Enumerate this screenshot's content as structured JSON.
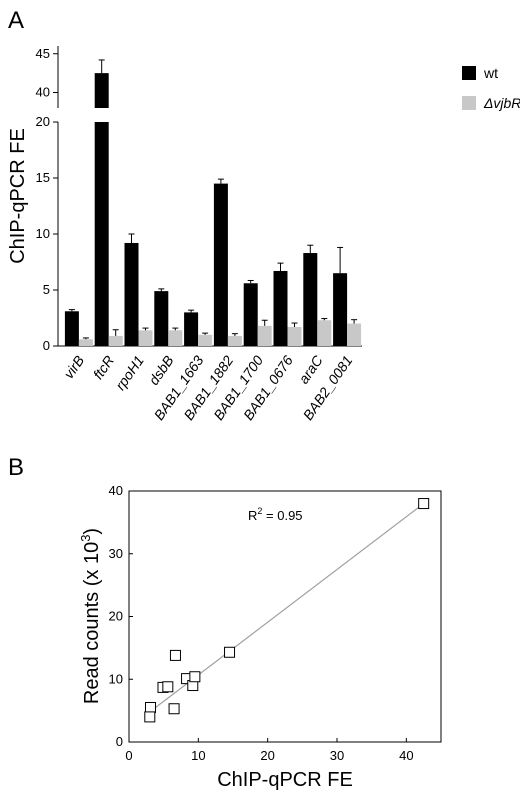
{
  "panels": {
    "a_label": "A",
    "b_label": "B"
  },
  "colors": {
    "wt": "#000000",
    "mutant": "#c8c8c8",
    "fit_line": "#a0a0a0"
  },
  "chart_data": [
    {
      "type": "bar",
      "panel": "A",
      "ylabel": "ChIP-qPCR FE",
      "categories": [
        "virB",
        "ftcR",
        "rpoH1",
        "dsbB",
        "BAB1_1663",
        "BAB1_1882",
        "BAB1_1700",
        "BAB1_0676",
        "araC",
        "BAB2_0081"
      ],
      "series": [
        {
          "name": "wt",
          "values": [
            3.1,
            42.5,
            9.2,
            4.9,
            3.0,
            14.5,
            5.6,
            6.7,
            8.3,
            6.5
          ],
          "errors": [
            0.15,
            1.7,
            0.8,
            0.2,
            0.2,
            0.4,
            0.25,
            0.7,
            0.7,
            2.3
          ]
        },
        {
          "name": "ΔvjbR",
          "values": [
            0.6,
            0.9,
            1.4,
            1.4,
            1.0,
            0.9,
            1.8,
            1.7,
            2.3,
            2.0
          ],
          "errors": [
            0.12,
            0.55,
            0.2,
            0.2,
            0.15,
            0.2,
            0.5,
            0.35,
            0.15,
            0.35
          ]
        }
      ],
      "y_axis_break": {
        "lower": [
          0,
          20
        ],
        "upper": [
          38,
          46
        ]
      },
      "yticks_lower": [
        0,
        5,
        10,
        15,
        20
      ],
      "yticks_upper": [
        40,
        45
      ],
      "legend_placement": "top-right"
    },
    {
      "type": "scatter",
      "panel": "B",
      "xlabel": "ChIP-qPCR FE",
      "ylabel_prefix": "Read counts (x 10",
      "ylabel_exp": "3",
      "ylabel_suffix": ")",
      "xlim": [
        0,
        45
      ],
      "ylim": [
        0,
        40
      ],
      "xticks": [
        0,
        10,
        20,
        30,
        40
      ],
      "yticks": [
        0,
        10,
        20,
        30,
        40
      ],
      "annotation_prefix": "R",
      "annotation_exp": "2",
      "annotation_suffix": " = 0.95",
      "points": [
        {
          "x": 3.1,
          "y": 5.5
        },
        {
          "x": 3.0,
          "y": 4.0
        },
        {
          "x": 4.9,
          "y": 8.7
        },
        {
          "x": 5.6,
          "y": 8.8
        },
        {
          "x": 6.5,
          "y": 5.3
        },
        {
          "x": 6.7,
          "y": 13.8
        },
        {
          "x": 8.3,
          "y": 10.1
        },
        {
          "x": 9.2,
          "y": 9.0
        },
        {
          "x": 9.5,
          "y": 10.4
        },
        {
          "x": 14.5,
          "y": 14.3
        },
        {
          "x": 42.5,
          "y": 38.0
        }
      ],
      "fit": {
        "x": [
          3.0,
          42.5
        ],
        "y": [
          4.8,
          38.0
        ]
      }
    }
  ]
}
